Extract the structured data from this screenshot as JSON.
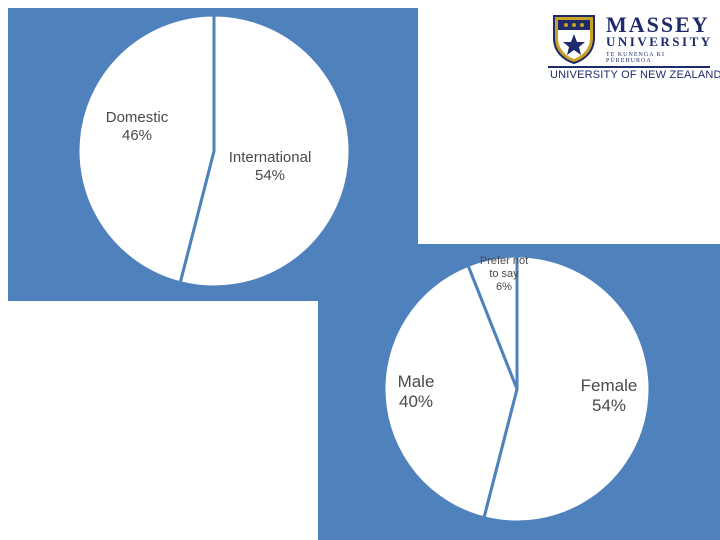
{
  "logo": {
    "name": "MASSEY",
    "subtitle": "UNIVERSITY",
    "maori": "TE KUNENGA KI PŪREHUROA",
    "tagline": "UNIVERSITY OF NEW ZEALAND"
  },
  "colors": {
    "panel": "#4f81bd",
    "slice_fill": "#ffffff",
    "slice_stroke": "#4f81bd",
    "label_text": "#4a4a4a",
    "logo_navy": "#1f2a6b"
  },
  "chart_data": [
    {
      "type": "pie",
      "title": "",
      "slices": [
        {
          "label": "International",
          "value": 54,
          "display": "International\n54%"
        },
        {
          "label": "Domestic",
          "value": 46,
          "display": "Domestic\n46%"
        }
      ],
      "start": "12 o'clock",
      "direction": "clockwise"
    },
    {
      "type": "pie",
      "title": "",
      "slices": [
        {
          "label": "Female",
          "value": 54,
          "display": "Female\n54%"
        },
        {
          "label": "Male",
          "value": 40,
          "display": "Male\n40%"
        },
        {
          "label": "Prefer not to say",
          "value": 6,
          "display": "Prefer not\nto say\n6%"
        }
      ],
      "start": "12 o'clock",
      "direction": "clockwise"
    }
  ]
}
